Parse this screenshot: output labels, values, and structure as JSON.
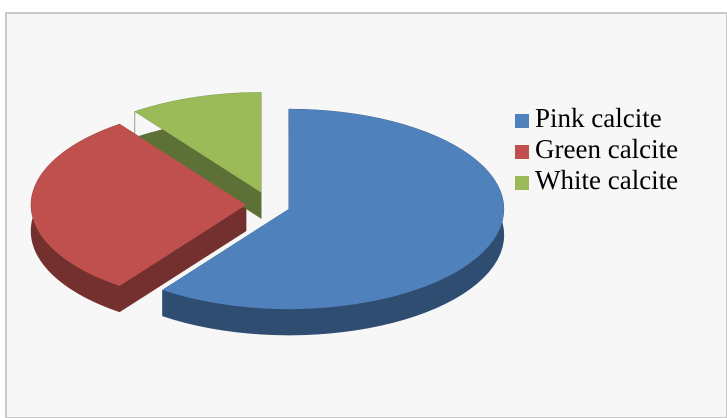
{
  "chart_data": {
    "type": "pie",
    "categories": [
      "Pink calcite",
      "Green calcite",
      "White calcite"
    ],
    "values": [
      60,
      30,
      10
    ],
    "colors": [
      "#4f81bd",
      "#c0504d",
      "#9bbb59"
    ],
    "legend": "right"
  }
}
